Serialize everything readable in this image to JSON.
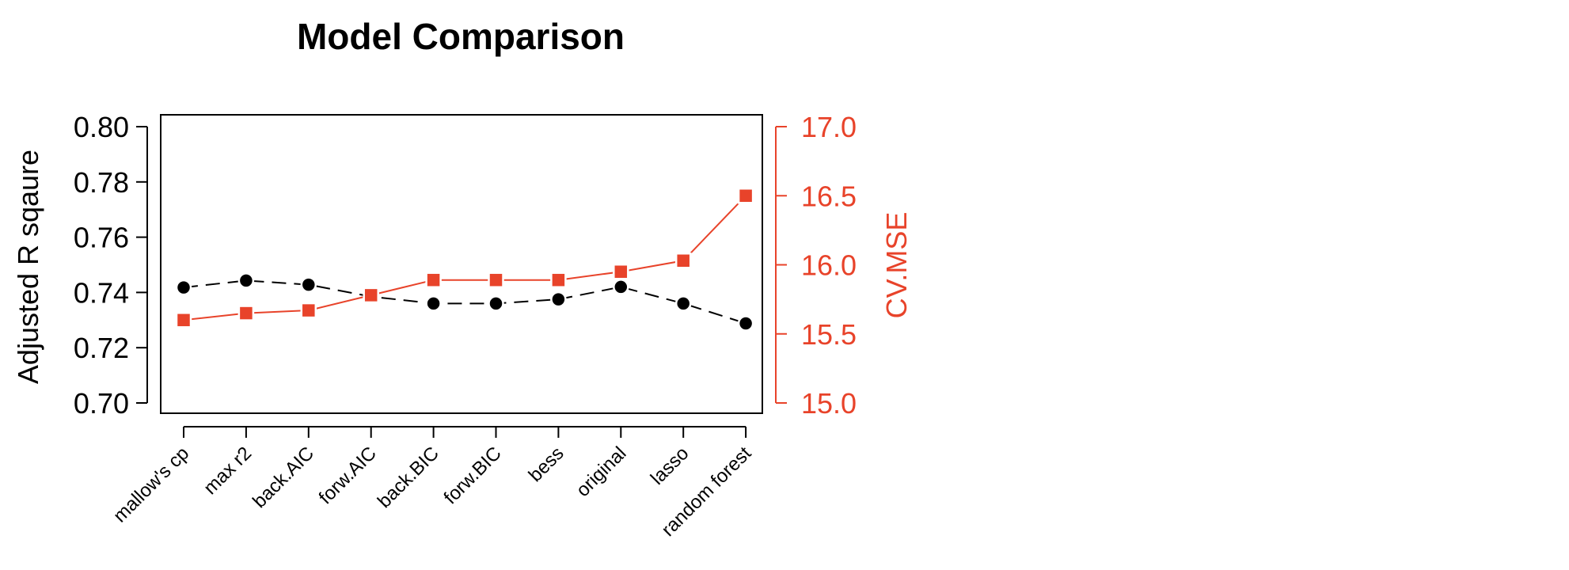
{
  "chart_data": {
    "type": "line",
    "title": "Model Comparison",
    "categories": [
      "mallow's cp",
      "max r2",
      "back.AIC",
      "forw.AIC",
      "back.BIC",
      "forw.BIC",
      "bess",
      "original",
      "lasso",
      "random forest"
    ],
    "left_axis": {
      "label": "Adjusted R sqaure",
      "ylim": [
        0.7,
        0.8
      ],
      "ticks": [
        "0.70",
        "0.72",
        "0.74",
        "0.76",
        "0.78",
        "0.80"
      ],
      "tick_values": [
        0.7,
        0.72,
        0.74,
        0.76,
        0.78,
        0.8
      ]
    },
    "right_axis": {
      "label": "CV.MSE",
      "ylim": [
        15.0,
        17.0
      ],
      "ticks": [
        "15.0",
        "15.5",
        "16.0",
        "16.5",
        "17.0"
      ],
      "tick_values": [
        15.0,
        15.5,
        16.0,
        16.5,
        17.0
      ],
      "color": "#e8432a"
    },
    "series": [
      {
        "axis": "left",
        "color": "#000000",
        "marker": "circle",
        "line": "dashed",
        "values": [
          0.7418,
          0.7443,
          0.7428,
          0.7385,
          0.736,
          0.736,
          0.7375,
          0.742,
          0.736,
          0.7288
        ]
      },
      {
        "axis": "right",
        "color": "#e8432a",
        "marker": "square",
        "line": "solid",
        "values": [
          15.6,
          15.65,
          15.67,
          15.78,
          15.89,
          15.89,
          15.89,
          15.95,
          16.03,
          16.5
        ]
      }
    ],
    "grid": false,
    "legend": "none"
  }
}
